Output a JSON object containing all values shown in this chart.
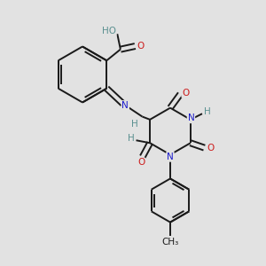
{
  "bg_color": "#e2e2e2",
  "bond_color": "#1a1a1a",
  "bond_width": 1.4,
  "atom_colors": {
    "C": "#1a1a1a",
    "H": "#5a9090",
    "N": "#1a1acc",
    "O": "#cc1a1a"
  },
  "font_size": 7.5,
  "fig_size": [
    3.0,
    3.0
  ],
  "dpi": 100
}
